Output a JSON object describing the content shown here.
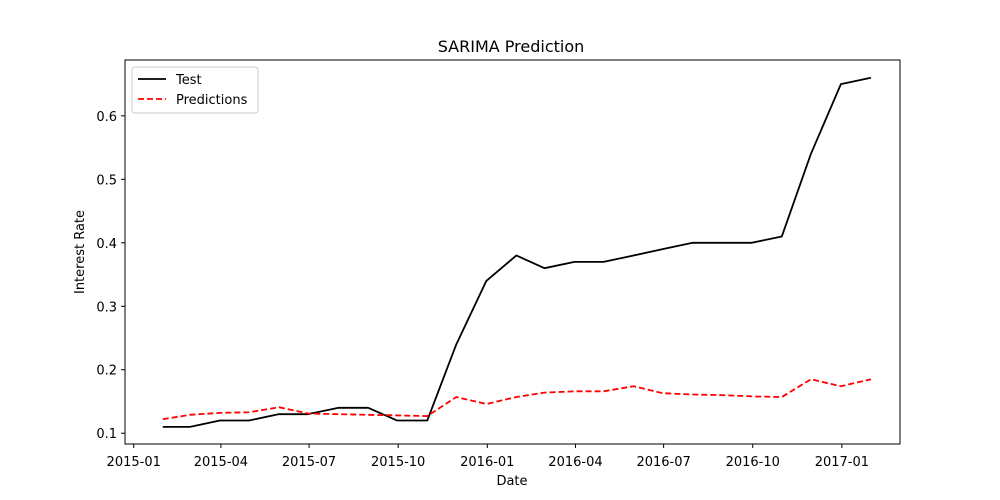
{
  "chart_data": {
    "type": "line",
    "title": "SARIMA Prediction",
    "xlabel": "Date",
    "ylabel": "Interest Rate",
    "xlim": [
      "2014-12-23",
      "2017-03-02"
    ],
    "ylim": [
      0.083,
      0.688
    ],
    "x_ticks": [
      {
        "date": "2015-01-01",
        "label": "2015-01"
      },
      {
        "date": "2015-04-01",
        "label": "2015-04"
      },
      {
        "date": "2015-07-01",
        "label": "2015-07"
      },
      {
        "date": "2015-10-01",
        "label": "2015-10"
      },
      {
        "date": "2016-01-01",
        "label": "2016-01"
      },
      {
        "date": "2016-04-01",
        "label": "2016-04"
      },
      {
        "date": "2016-07-01",
        "label": "2016-07"
      },
      {
        "date": "2016-10-01",
        "label": "2016-10"
      },
      {
        "date": "2017-01-01",
        "label": "2017-01"
      }
    ],
    "y_ticks": [
      {
        "value": 0.1,
        "label": "0.1"
      },
      {
        "value": 0.2,
        "label": "0.2"
      },
      {
        "value": 0.3,
        "label": "0.3"
      },
      {
        "value": 0.4,
        "label": "0.4"
      },
      {
        "value": 0.5,
        "label": "0.5"
      },
      {
        "value": 0.6,
        "label": "0.6"
      }
    ],
    "x": [
      "2015-01-31",
      "2015-02-28",
      "2015-03-31",
      "2015-04-30",
      "2015-05-31",
      "2015-06-30",
      "2015-07-31",
      "2015-08-31",
      "2015-09-30",
      "2015-10-31",
      "2015-11-30",
      "2015-12-31",
      "2016-01-31",
      "2016-02-29",
      "2016-03-31",
      "2016-04-30",
      "2016-05-31",
      "2016-06-30",
      "2016-07-31",
      "2016-08-31",
      "2016-09-30",
      "2016-10-31",
      "2016-11-30",
      "2016-12-31",
      "2017-01-31"
    ],
    "series": [
      {
        "name": "Test",
        "color": "#000000",
        "style": "solid",
        "values": [
          0.11,
          0.11,
          0.12,
          0.12,
          0.13,
          0.13,
          0.14,
          0.14,
          0.12,
          0.12,
          0.24,
          0.34,
          0.38,
          0.36,
          0.37,
          0.37,
          0.38,
          0.39,
          0.4,
          0.4,
          0.4,
          0.41,
          0.54,
          0.65,
          0.66
        ]
      },
      {
        "name": "Predictions",
        "color": "#ff0000",
        "style": "dashed",
        "values": [
          0.122,
          0.129,
          0.132,
          0.133,
          0.141,
          0.131,
          0.13,
          0.129,
          0.128,
          0.127,
          0.157,
          0.146,
          0.157,
          0.164,
          0.166,
          0.166,
          0.174,
          0.163,
          0.161,
          0.16,
          0.158,
          0.157,
          0.185,
          0.174,
          0.185
        ]
      }
    ],
    "legend_position": "top-left",
    "grid": false
  }
}
